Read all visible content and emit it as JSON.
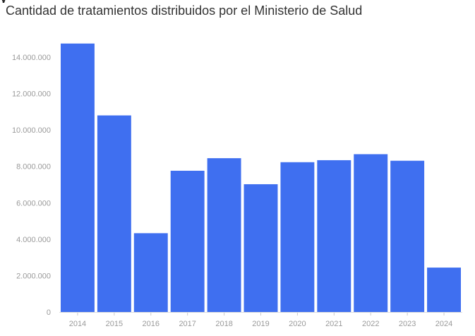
{
  "header": {
    "clipped_heading": "y"
  },
  "chart_data": {
    "type": "bar",
    "title": "Cantidad de tratamientos distribuidos por el Ministerio de Salud",
    "xlabel": "",
    "ylabel": "",
    "categories": [
      "2014",
      "2015",
      "2016",
      "2017",
      "2018",
      "2019",
      "2020",
      "2021",
      "2022",
      "2023",
      "2024"
    ],
    "values": [
      14750000,
      10800000,
      4330000,
      7760000,
      8450000,
      7020000,
      8230000,
      8340000,
      8670000,
      8310000,
      2440000
    ],
    "ylim": [
      0,
      14750000
    ],
    "yticks": [
      0,
      2000000,
      4000000,
      6000000,
      8000000,
      10000000,
      12000000,
      14000000
    ],
    "ytick_labels": [
      "0",
      "2.000.000",
      "4.000.000",
      "6.000.000",
      "8.000.000",
      "10.000.000",
      "12.000.000",
      "14.000.000"
    ],
    "grid": false,
    "legend": "none",
    "bar_color": "#3f6ff0"
  }
}
